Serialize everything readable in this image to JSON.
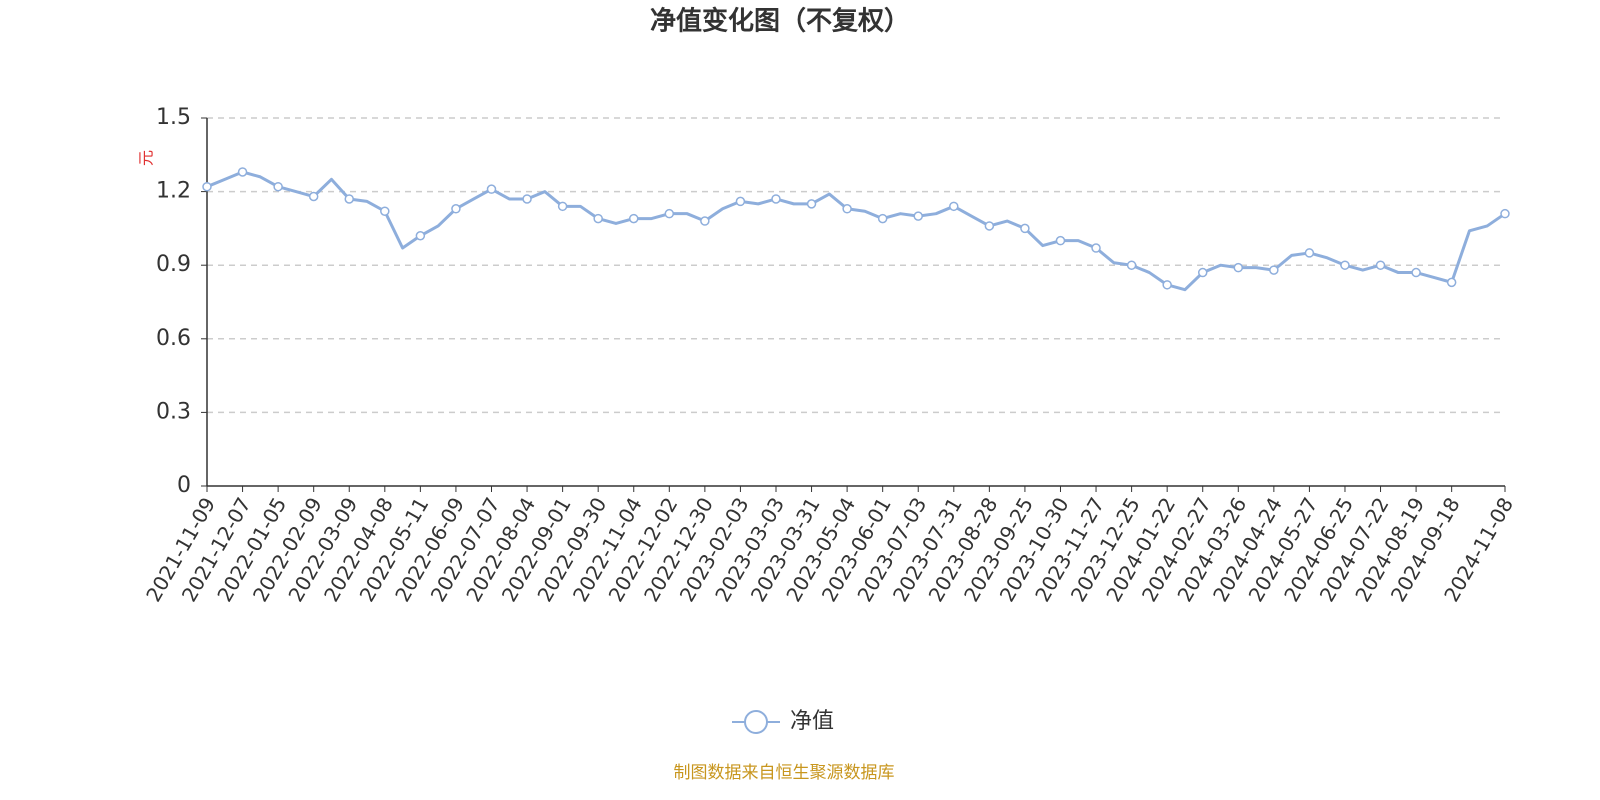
{
  "chart_data": {
    "type": "line",
    "title": "净值变化图（不复权）",
    "ylabel": "元",
    "source": "制图数据来自恒生聚源数据库",
    "categories": [
      "2021-11-09",
      null,
      "2021-12-07",
      null,
      "2022-01-05",
      null,
      "2022-02-09",
      null,
      "2022-03-09",
      null,
      "2022-04-08",
      null,
      "2022-05-11",
      null,
      "2022-06-09",
      null,
      "2022-07-07",
      null,
      "2022-08-04",
      null,
      "2022-09-01",
      null,
      "2022-09-30",
      null,
      "2022-11-04",
      null,
      "2022-12-02",
      null,
      "2022-12-30",
      null,
      "2023-02-03",
      null,
      "2023-03-03",
      null,
      "2023-03-31",
      null,
      "2023-05-04",
      null,
      "2023-06-01",
      null,
      "2023-07-03",
      null,
      "2023-07-31",
      null,
      "2023-08-28",
      null,
      "2023-09-25",
      null,
      "2023-10-30",
      null,
      "2023-11-27",
      null,
      "2023-12-25",
      null,
      "2024-01-22",
      null,
      "2024-02-27",
      null,
      "2024-03-26",
      null,
      "2024-04-24",
      null,
      "2024-05-27",
      null,
      "2024-06-25",
      null,
      "2024-07-22",
      null,
      "2024-08-19",
      null,
      "2024-09-18",
      null,
      null,
      "2024-11-08"
    ],
    "series": [
      {
        "name": "净值",
        "color": "#8eaedc",
        "values": [
          1.22,
          1.25,
          1.28,
          1.26,
          1.22,
          1.2,
          1.18,
          1.25,
          1.17,
          1.16,
          1.12,
          0.97,
          1.02,
          1.06,
          1.13,
          1.17,
          1.21,
          1.17,
          1.17,
          1.2,
          1.14,
          1.14,
          1.09,
          1.07,
          1.09,
          1.09,
          1.11,
          1.11,
          1.08,
          1.13,
          1.16,
          1.15,
          1.17,
          1.15,
          1.15,
          1.19,
          1.13,
          1.12,
          1.09,
          1.11,
          1.1,
          1.11,
          1.14,
          1.1,
          1.06,
          1.08,
          1.05,
          0.98,
          1.0,
          1.0,
          0.97,
          0.91,
          0.9,
          0.87,
          0.82,
          0.8,
          0.87,
          0.9,
          0.89,
          0.89,
          0.88,
          0.94,
          0.95,
          0.93,
          0.9,
          0.88,
          0.9,
          0.87,
          0.87,
          0.85,
          0.83,
          1.04,
          1.06,
          1.11
        ]
      }
    ],
    "ylim": [
      0,
      1.5
    ],
    "yticks": [
      0,
      0.3,
      0.6,
      0.9,
      1.2,
      1.5
    ],
    "grid": true
  }
}
